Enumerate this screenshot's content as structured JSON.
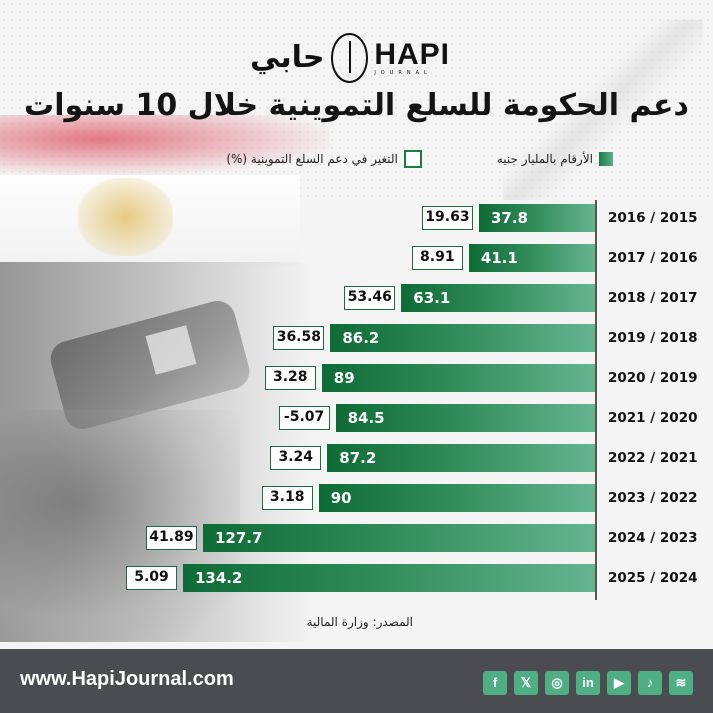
{
  "logo": {
    "arabic": "حابي",
    "english": "HAPI",
    "sub": "JOURNAL"
  },
  "title": "دعم الحكومة للسلع التموينية خلال 10 سنوات",
  "legend": {
    "bars_label": "الأرقام بالمليار جنيه",
    "boxes_label": "التغير في دعم السلع التموينية (%)"
  },
  "source": "المصدر: وزارة المالية",
  "footer": {
    "url": "www.HapiJournal.com",
    "social": [
      {
        "name": "facebook",
        "glyph": "f"
      },
      {
        "name": "x",
        "glyph": "𝕏"
      },
      {
        "name": "instagram",
        "glyph": "◎"
      },
      {
        "name": "linkedin",
        "glyph": "in"
      },
      {
        "name": "youtube",
        "glyph": "▶"
      },
      {
        "name": "tiktok",
        "glyph": "♪"
      },
      {
        "name": "spotify",
        "glyph": "≋"
      }
    ]
  },
  "colors": {
    "bar_dark": "#0f6b36",
    "bar_light": "#64b591",
    "footer_bg": "#4a4c51",
    "social_bg": "#4fae84"
  },
  "chart_data": {
    "type": "bar",
    "orientation": "horizontal",
    "title": "دعم الحكومة للسلع التموينية خلال 10 سنوات",
    "xlabel": "",
    "ylabel": "",
    "categories": [
      "2016 / 2015",
      "2017 / 2016",
      "2018 / 2017",
      "2019 / 2018",
      "2020 / 2019",
      "2021 / 2020",
      "2022 / 2021",
      "2023 / 2022",
      "2024 / 2023",
      "2025 / 2024"
    ],
    "series": [
      {
        "name": "الأرقام بالمليار جنيه",
        "values": [
          37.8,
          41.1,
          63.1,
          86.2,
          89,
          84.5,
          87.2,
          90,
          127.7,
          134.2
        ]
      },
      {
        "name": "التغير في دعم السلع التموينية (%)",
        "values": [
          19.63,
          8.91,
          53.46,
          36.58,
          3.28,
          -5.07,
          3.24,
          3.18,
          41.89,
          5.09
        ]
      }
    ],
    "value_labels": {
      "bars": [
        "37.8",
        "41.1",
        "63.1",
        "86.2",
        "89",
        "84.5",
        "87.2",
        "90",
        "127.7",
        "134.2"
      ],
      "pct": [
        "19.63",
        "8.91",
        "53.46",
        "36.58",
        "3.28",
        "-5.07",
        "3.24",
        "3.18",
        "41.89",
        "5.09"
      ]
    },
    "legend_position": "top",
    "grid": false,
    "xlim": [
      0,
      134.2
    ]
  }
}
